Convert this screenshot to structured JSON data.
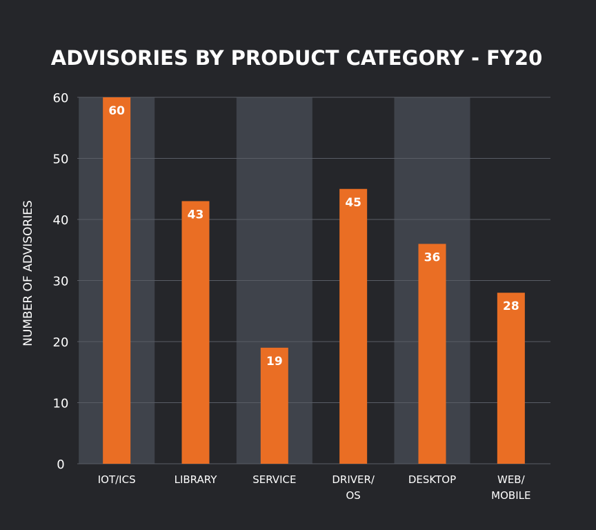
{
  "chart_data": {
    "type": "bar",
    "title": "ADVISORIES BY PRODUCT CATEGORY - FY20",
    "ylabel": "NUMBER OF ADVISORIES",
    "xlabel": "",
    "categories": [
      [
        "IOT/ICS"
      ],
      [
        "LIBRARY"
      ],
      [
        "SERVICE"
      ],
      [
        "DRIVER/",
        "OS"
      ],
      [
        "DESKTOP"
      ],
      [
        "WEB/",
        "MOBILE"
      ]
    ],
    "values": [
      60,
      43,
      19,
      45,
      36,
      28
    ],
    "value_labels": [
      "60",
      "43",
      "19",
      "45",
      "36",
      "28"
    ],
    "yticks": [
      "0",
      "10",
      "20",
      "30",
      "40",
      "50",
      "60"
    ],
    "ylim": [
      0,
      60
    ],
    "grid": true,
    "shaded_columns": [
      0,
      2,
      4
    ]
  },
  "colors": {
    "background": "#25262a",
    "bar": "#ea6e24",
    "band": "#3f434b",
    "grid": "#5a5e66",
    "text": "#ffffff"
  }
}
